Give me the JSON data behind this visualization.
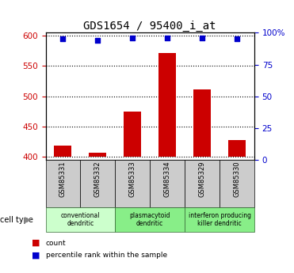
{
  "title": "GDS1654 / 95400_i_at",
  "samples": [
    "GSM85331",
    "GSM85332",
    "GSM85333",
    "GSM85334",
    "GSM85329",
    "GSM85330"
  ],
  "count_values": [
    418,
    406,
    475,
    572,
    511,
    428
  ],
  "percentile_values": [
    95,
    94,
    96,
    96,
    96,
    95
  ],
  "ylim_left": [
    395,
    605
  ],
  "ylim_right": [
    0,
    100
  ],
  "yticks_left": [
    400,
    450,
    500,
    550,
    600
  ],
  "yticks_right": [
    0,
    25,
    50,
    75,
    100
  ],
  "ytick_labels_right": [
    "0",
    "25",
    "50",
    "75",
    "100%"
  ],
  "bar_color": "#cc0000",
  "dot_color": "#0000cc",
  "bar_base": 400,
  "groups": [
    {
      "label": "conventional\ndendritic",
      "start": 0,
      "end": 2,
      "color": "#ccffcc"
    },
    {
      "label": "plasmacytoid\ndendritic",
      "start": 2,
      "end": 4,
      "color": "#88ee88"
    },
    {
      "label": "interferon producing\nkiller dendritic",
      "start": 4,
      "end": 6,
      "color": "#88ee88"
    }
  ],
  "cell_type_label": "cell type",
  "legend_count": "count",
  "legend_percentile": "percentile rank within the sample",
  "title_fontsize": 10,
  "axis_label_color_left": "#cc0000",
  "axis_label_color_right": "#0000cc",
  "sample_box_color": "#cccccc"
}
